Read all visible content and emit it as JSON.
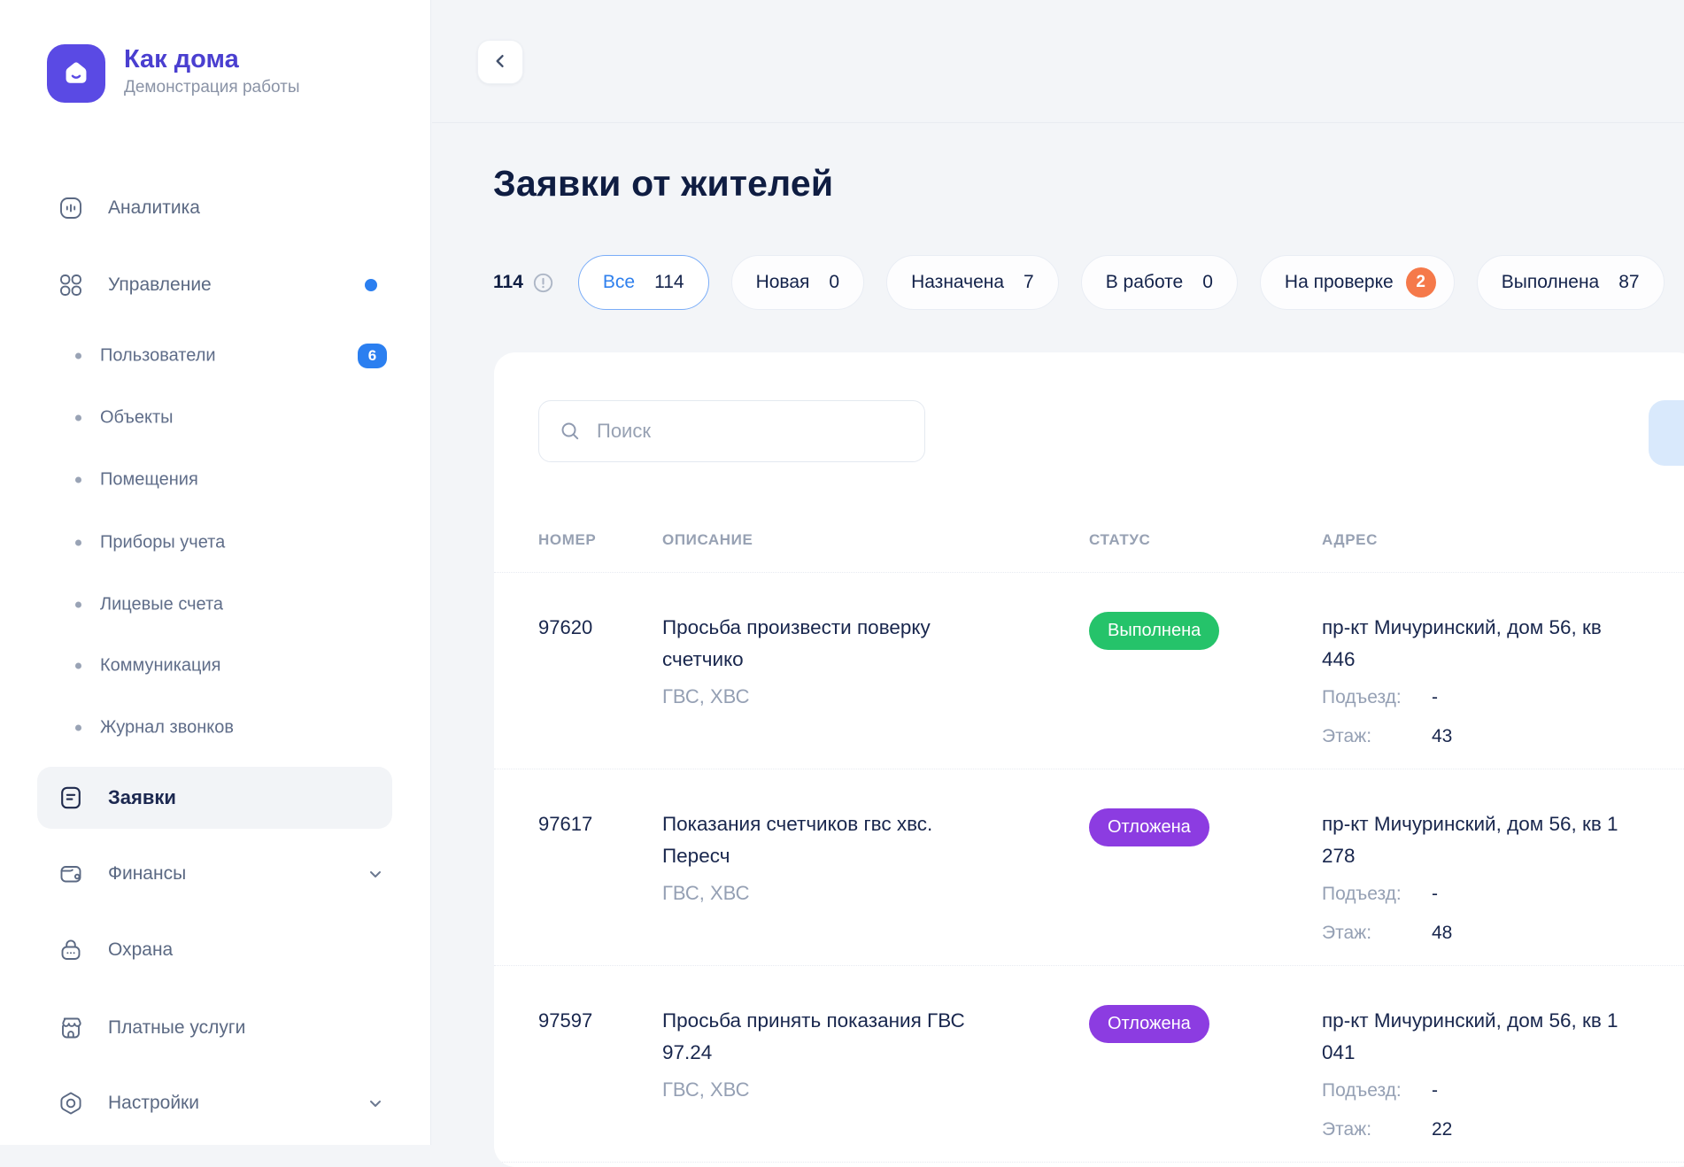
{
  "sidebar": {
    "logo": {
      "title": "Как дома",
      "subtitle": "Демонстрация работы"
    },
    "items": [
      {
        "key": "analytics",
        "label": "Аналитика",
        "icon": "analytics"
      },
      {
        "key": "management",
        "label": "Управление",
        "icon": "management",
        "dot": true
      },
      {
        "key": "users",
        "label": "Пользователи",
        "sub": true,
        "badge": "6"
      },
      {
        "key": "objects",
        "label": "Объекты",
        "sub": true
      },
      {
        "key": "premises",
        "label": "Помещения",
        "sub": true
      },
      {
        "key": "meters",
        "label": "Приборы учета",
        "sub": true
      },
      {
        "key": "accounts",
        "label": "Лицевые счета",
        "sub": true
      },
      {
        "key": "communication",
        "label": "Коммуникация",
        "sub": true
      },
      {
        "key": "call-log",
        "label": "Журнал звонков",
        "sub": true
      },
      {
        "key": "requests",
        "label": "Заявки",
        "icon": "requests",
        "active": true
      },
      {
        "key": "finance",
        "label": "Финансы",
        "icon": "finance",
        "chevron": true
      },
      {
        "key": "security",
        "label": "Охрана",
        "icon": "security"
      },
      {
        "key": "paid-services",
        "label": "Платные услуги",
        "icon": "paid-services"
      },
      {
        "key": "settings",
        "label": "Настройки",
        "icon": "settings",
        "chevron": true
      }
    ]
  },
  "header": {
    "title": "Заявки от жителей",
    "total_count": "114"
  },
  "filters": [
    {
      "key": "all",
      "label": "Все",
      "count": "114",
      "active": true
    },
    {
      "key": "new",
      "label": "Новая",
      "count": "0"
    },
    {
      "key": "assigned",
      "label": "Назначена",
      "count": "7"
    },
    {
      "key": "in-progress",
      "label": "В работе",
      "count": "0"
    },
    {
      "key": "on-review",
      "label": "На проверке",
      "count": "2",
      "count_badge": true
    },
    {
      "key": "done",
      "label": "Выполнена",
      "count": "87"
    }
  ],
  "search": {
    "placeholder": "Поиск"
  },
  "table": {
    "columns": [
      "НОМЕР",
      "ОПИСАНИЕ",
      "СТАТУС",
      "АДРЕС"
    ],
    "entrance_label": "Подъезд:",
    "floor_label": "Этаж:",
    "rows": [
      {
        "number": "97620",
        "description": "Просьба произвести поверку счетчико",
        "tags": "ГВС, ХВС",
        "status": {
          "label": "Выполнена",
          "color": "green"
        },
        "address": "пр-кт Мичуринский, дом 56, кв 446",
        "entrance": "-",
        "floor": "43"
      },
      {
        "number": "97617",
        "description": "Показания счетчиков гвс хвс. Пересч",
        "tags": "ГВС, ХВС",
        "status": {
          "label": "Отложена",
          "color": "purple"
        },
        "address": "пр-кт Мичуринский, дом 56, кв 1 278",
        "entrance": "-",
        "floor": "48"
      },
      {
        "number": "97597",
        "description": "Просьба принять показания ГВС 97.24",
        "tags": "ГВС, ХВС",
        "status": {
          "label": "Отложена",
          "color": "purple"
        },
        "address": "пр-кт Мичуринский, дом 56, кв 1 041",
        "entrance": "-",
        "floor": "22"
      }
    ]
  },
  "colors": {
    "brand": "#5a4ae4",
    "blue": "#2b7ff0",
    "orange": "#f5794a",
    "status": {
      "green": "#25c36a",
      "purple": "#8c3ce1"
    }
  }
}
